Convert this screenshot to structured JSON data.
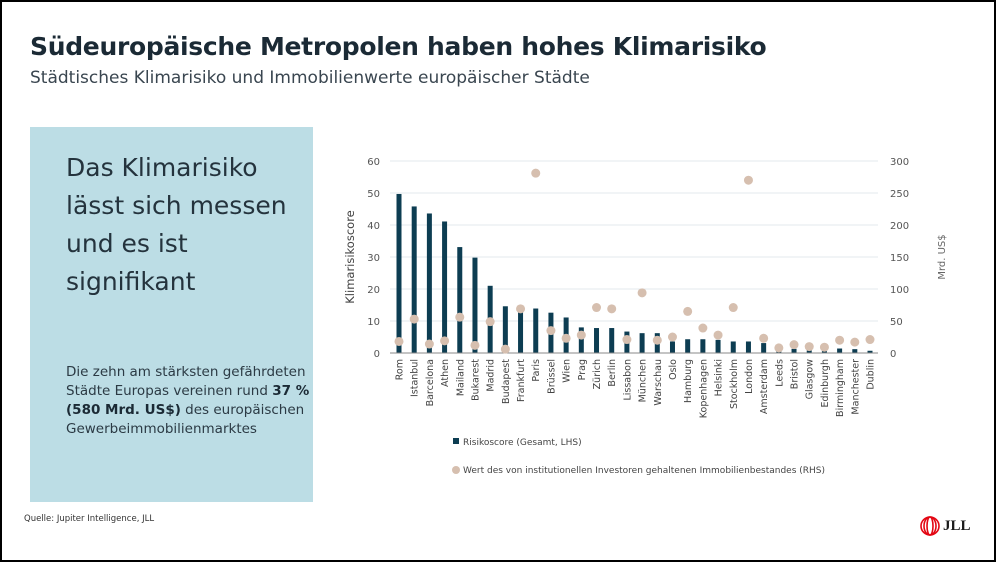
{
  "slide": {
    "title": "Südeuropäische Metropolen haben hohes Klimarisiko",
    "subtitle": "Städtisches Klimarisiko und Immobilienwerte europäischer Städte",
    "callout": {
      "headline": "Das Klimarisiko lässt sich messen und es ist signifikant",
      "body_prefix": "Die zehn am stärksten gefährdeten Städte Europas vereinen rund ",
      "body_bold_1": "37 %",
      "body_bold_2": "(580 Mrd. US$)",
      "body_suffix": " des europäischen Gewerbeimmobilienmarktes"
    },
    "source": "Quelle: Jupiter Intelligence, JLL",
    "logo_text": "JLL",
    "colors": {
      "background_box": "#bcdde5",
      "bar": "#0d3d52",
      "dot": "#d6bfaf",
      "logo_red": "#e30613"
    }
  },
  "chart_data": {
    "type": "bar+scatter",
    "categories": [
      "Rom",
      "Istanbul",
      "Barcelona",
      "Athen",
      "Mailand",
      "Bukarest",
      "Madrid",
      "Budapest",
      "Frankfurt",
      "Paris",
      "Brüssel",
      "Wien",
      "Prag",
      "Zürich",
      "Berlin",
      "Lissabon",
      "München",
      "Warschau",
      "Oslo",
      "Hamburg",
      "Kopenhagen",
      "Helsinki",
      "Stockholm",
      "London",
      "Amsterdam",
      "Leeds",
      "Bristol",
      "Glasgow",
      "Edinburgh",
      "Birmingham",
      "Manchester",
      "Dublin"
    ],
    "series": [
      {
        "name": "Risikoscore (Gesamt, LHS)",
        "type": "bar",
        "axis": "left",
        "color": "#0d3d52",
        "values": [
          49.7,
          45.8,
          43.6,
          41.1,
          33.1,
          29.8,
          21,
          14.6,
          13,
          13.9,
          12.6,
          11.1,
          8,
          7.8,
          7.8,
          6.7,
          6.2,
          6.2,
          3.6,
          4.3,
          4.3,
          4.1,
          3.6,
          3.6,
          3.1,
          0.5,
          1.3,
          0.8,
          0.6,
          1.4,
          1.2,
          0.7
        ]
      },
      {
        "name": "Wert des von institutionellen Investoren gehaltenen Immobilienbestandes (RHS)",
        "type": "scatter",
        "axis": "right",
        "color": "#d6bfaf",
        "values": [
          18,
          53,
          14,
          19,
          56,
          12,
          49,
          6,
          69,
          281,
          35,
          23,
          28,
          71,
          69,
          21,
          94,
          20,
          25,
          65,
          39,
          28,
          71,
          270,
          23,
          8,
          13,
          10,
          9,
          20,
          17,
          21
        ]
      }
    ],
    "ylabel": "Klimarisikoscore",
    "ylabel_right": "Mrd. US$",
    "ylim": [
      0,
      60
    ],
    "ylim_right": [
      0,
      300
    ],
    "yticks": [
      0,
      10,
      20,
      30,
      40,
      50,
      60
    ],
    "yticks_right": [
      0,
      50,
      100,
      150,
      200,
      250,
      300
    ],
    "grid": true,
    "legend": "bottom"
  }
}
